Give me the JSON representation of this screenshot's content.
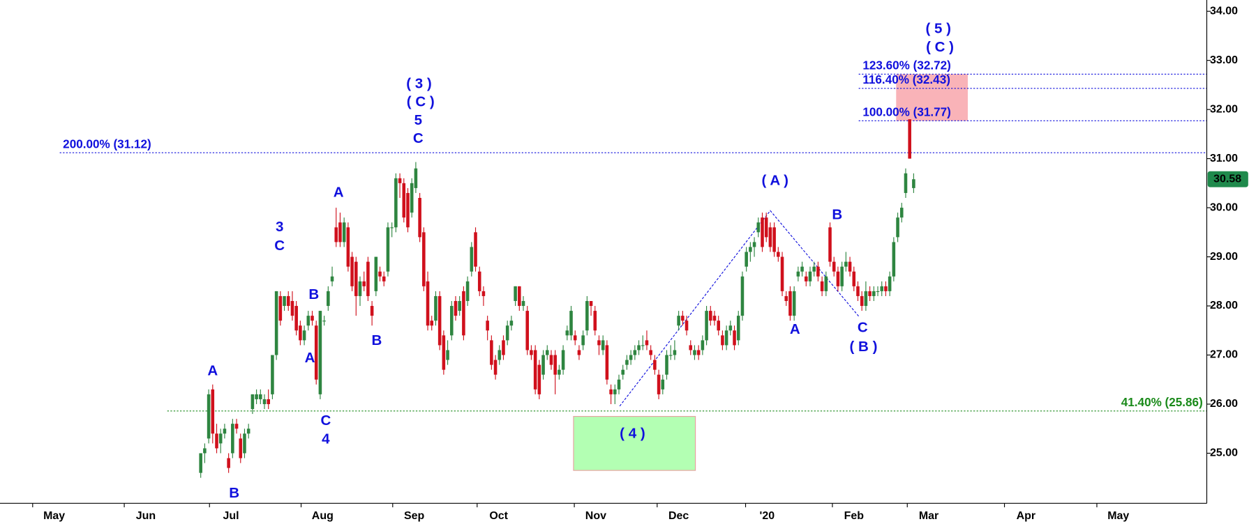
{
  "chart_data": {
    "type": "candlestick",
    "up_color": "#2e8540",
    "down_color": "#d0101c",
    "xlim": [
      -50.4,
      252.6
    ],
    "ylim": [
      23.98,
      34.23
    ],
    "xticks": [
      {
        "value": -36.8,
        "label": "May"
      },
      {
        "value": -13.8,
        "label": "Jun"
      },
      {
        "value": 7.6,
        "label": "Jul"
      },
      {
        "value": 30.6,
        "label": "Aug"
      },
      {
        "value": 53.6,
        "label": "Sep"
      },
      {
        "value": 74.8,
        "label": "Oct"
      },
      {
        "value": 99.2,
        "label": "Nov"
      },
      {
        "value": 120,
        "label": "Dec"
      },
      {
        "value": 142.2,
        "label": "'20"
      },
      {
        "value": 164,
        "label": "Feb"
      },
      {
        "value": 182.8,
        "label": "Mar"
      },
      {
        "value": 207.2,
        "label": "Apr"
      },
      {
        "value": 230.4,
        "label": "May"
      }
    ],
    "yticks": [
      {
        "value": 25,
        "label": "25.00"
      },
      {
        "value": 26,
        "label": "26.00"
      },
      {
        "value": 27,
        "label": "27.00"
      },
      {
        "value": 28,
        "label": "28.00"
      },
      {
        "value": 29,
        "label": "29.00"
      },
      {
        "value": 30,
        "label": "30.00"
      },
      {
        "value": 31,
        "label": "31.00"
      },
      {
        "value": 32,
        "label": "32.00"
      },
      {
        "value": 33,
        "label": "33.00"
      },
      {
        "value": 34,
        "label": "34.00"
      }
    ],
    "x": [
      0,
      1,
      2,
      3,
      4,
      5,
      6,
      7,
      8,
      9,
      10,
      11,
      12,
      13,
      14,
      15,
      16,
      17,
      18,
      19,
      20,
      21,
      22,
      23,
      24,
      25,
      26,
      27,
      28,
      29,
      30,
      31,
      32,
      33,
      34,
      35,
      36,
      37,
      38,
      39,
      40,
      41,
      42,
      43,
      44,
      45,
      46,
      47,
      48,
      49,
      50,
      51,
      52,
      53,
      54,
      55,
      56,
      57,
      58,
      59,
      60,
      61,
      62,
      63,
      64,
      65,
      66,
      67,
      68,
      69,
      70,
      71,
      72,
      73,
      74,
      75,
      76,
      77,
      78,
      79,
      80,
      81,
      82,
      83,
      84,
      85,
      86,
      87,
      88,
      89,
      90,
      91,
      92,
      93,
      94,
      95,
      96,
      97,
      98,
      99,
      100,
      101,
      102,
      103,
      104,
      105,
      106,
      107,
      108,
      109,
      110,
      111,
      112,
      113,
      114,
      115,
      116,
      117,
      118,
      119,
      120,
      121,
      122,
      123,
      124,
      125,
      126,
      127,
      128,
      129,
      130,
      131,
      132,
      133,
      134,
      135,
      136,
      137,
      138,
      139,
      140,
      141,
      142,
      143,
      144,
      145,
      146,
      147,
      148,
      149,
      150,
      151,
      152,
      153,
      154,
      155,
      156,
      157,
      158,
      159,
      160,
      161,
      162,
      163,
      164,
      165,
      166,
      167,
      168,
      169,
      170,
      171,
      172,
      173,
      174,
      175,
      176,
      177,
      178,
      179
    ],
    "open": [
      24.6,
      25.0,
      25.3,
      26.3,
      25.4,
      25.2,
      25.4,
      24.9,
      25.0,
      25.6,
      25.3,
      25.0,
      25.4,
      25.9,
      26.1,
      26.1,
      26.0,
      26.1,
      26.2,
      27.0,
      28.2,
      28.0,
      28.2,
      28.1,
      28.0,
      27.6,
      27.3,
      27.6,
      27.8,
      27.6,
      26.2,
      27.7,
      28.0,
      28.5,
      29.6,
      29.7,
      29.3,
      29.6,
      29.0,
      28.9,
      28.2,
      28.5,
      28.9,
      28.0,
      28.3,
      28.7,
      28.6,
      28.7,
      29.6,
      29.6,
      30.6,
      30.5,
      30.3,
      29.9,
      30.4,
      30.2,
      29.5,
      28.5,
      27.7,
      27.7,
      28.2,
      27.4,
      26.9,
      27.4,
      28.1,
      27.9,
      28.3,
      28.1,
      28.7,
      29.5,
      28.7,
      28.3,
      27.7,
      27.3,
      26.9,
      26.9,
      27.3,
      27.3,
      27.6,
      28.1,
      28.4,
      28.0,
      27.9,
      27.1,
      27.1,
      26.8,
      26.6,
      27.0,
      27.0,
      27.0,
      26.6,
      26.7,
      27.4,
      27.4,
      27.4,
      27.1,
      27.2,
      27.5,
      28.1,
      27.9,
      27.3,
      27.1,
      27.2,
      26.3,
      26.2,
      26.3,
      26.6,
      26.8,
      26.9,
      27.0,
      27.1,
      27.2,
      27.3,
      27.1,
      26.9,
      26.6,
      26.3,
      26.6,
      27.0,
      27.0,
      27.6,
      27.8,
      27.7,
      27.2,
      27.0,
      27.1,
      27.1,
      27.3,
      27.9,
      27.8,
      27.7,
      27.4,
      27.2,
      27.5,
      27.5,
      27.3,
      27.8,
      28.8,
      29.1,
      29.2,
      29.5,
      29.8,
      29.8,
      29.6,
      29.6,
      29.1,
      29.0,
      28.2,
      28.3,
      27.8,
      28.6,
      28.7,
      28.6,
      28.5,
      28.7,
      28.8,
      28.5,
      28.3,
      29.6,
      28.9,
      28.7,
      28.4,
      28.8,
      28.9,
      28.7,
      28.4,
      28.2,
      28.0,
      28.3,
      28.2,
      28.3,
      28.3,
      28.4,
      28.3,
      28.6,
      29.4,
      29.8,
      30.3,
      31.8,
      30.4
    ],
    "high": [
      25.0,
      25.2,
      26.3,
      26.4,
      25.6,
      25.5,
      25.6,
      25.0,
      25.7,
      25.7,
      25.4,
      25.5,
      25.6,
      26.2,
      26.3,
      26.3,
      26.2,
      26.3,
      27.0,
      28.3,
      28.3,
      28.2,
      28.3,
      28.3,
      28.1,
      27.7,
      27.6,
      27.9,
      27.9,
      27.7,
      27.9,
      27.8,
      28.4,
      28.8,
      30.0,
      29.9,
      29.8,
      29.7,
      29.1,
      29.0,
      28.6,
      28.7,
      29.0,
      28.1,
      29.0,
      28.8,
      28.7,
      29.7,
      29.7,
      30.7,
      30.7,
      30.6,
      30.4,
      30.6,
      30.93,
      30.3,
      29.6,
      28.7,
      27.8,
      28.3,
      28.3,
      27.5,
      27.3,
      28.1,
      28.2,
      28.2,
      28.4,
      28.6,
      29.3,
      29.6,
      28.8,
      28.4,
      27.8,
      27.4,
      27.0,
      27.2,
      27.4,
      27.7,
      27.8,
      28.4,
      28.4,
      28.2,
      28.0,
      27.2,
      27.2,
      26.9,
      27.1,
      27.2,
      27.1,
      27.1,
      26.8,
      27.2,
      27.6,
      28.0,
      27.5,
      27.2,
      27.5,
      28.2,
      28.1,
      28.0,
      27.4,
      27.4,
      27.3,
      26.4,
      26.4,
      26.6,
      26.8,
      27.0,
      27.1,
      27.2,
      27.3,
      27.4,
      27.5,
      27.2,
      27.0,
      26.7,
      26.6,
      27.1,
      27.2,
      27.3,
      27.9,
      27.9,
      27.8,
      27.3,
      27.2,
      27.2,
      27.4,
      28.0,
      28.0,
      27.9,
      27.8,
      27.5,
      27.6,
      27.7,
      27.6,
      27.9,
      28.7,
      29.2,
      29.3,
      29.4,
      29.8,
      29.9,
      29.9,
      29.7,
      29.7,
      29.2,
      29.1,
      28.3,
      28.4,
      28.4,
      28.8,
      28.9,
      28.7,
      28.8,
      28.9,
      28.9,
      28.6,
      28.7,
      29.7,
      29.0,
      28.8,
      28.9,
      29.1,
      29.0,
      28.8,
      28.5,
      28.3,
      28.5,
      28.4,
      28.4,
      28.4,
      28.5,
      28.5,
      28.7,
      29.4,
      29.9,
      30.1,
      30.8,
      31.8,
      30.7
    ],
    "low": [
      24.5,
      24.8,
      25.2,
      25.2,
      25.0,
      25.0,
      25.3,
      24.6,
      24.9,
      25.4,
      24.8,
      24.9,
      25.3,
      25.8,
      26.0,
      26.0,
      25.9,
      25.9,
      26.1,
      26.9,
      27.6,
      27.9,
      27.9,
      27.7,
      27.4,
      27.2,
      27.2,
      27.5,
      27.6,
      26.4,
      26.1,
      27.6,
      27.9,
      28.4,
      29.2,
      29.2,
      29.2,
      28.7,
      28.3,
      27.8,
      28.0,
      28.3,
      28.1,
      27.6,
      28.2,
      28.5,
      28.4,
      28.6,
      29.4,
      29.5,
      30.2,
      29.7,
      29.5,
      29.8,
      30.3,
      29.3,
      28.3,
      27.5,
      27.5,
      27.6,
      27.1,
      26.6,
      26.8,
      27.3,
      27.7,
      27.8,
      27.3,
      28.0,
      28.6,
      28.7,
      28.2,
      28.0,
      27.3,
      26.7,
      26.5,
      26.8,
      26.9,
      27.2,
      27.5,
      28.0,
      27.9,
      27.9,
      27.0,
      26.9,
      26.2,
      26.1,
      26.5,
      26.9,
      26.7,
      26.2,
      26.5,
      26.6,
      27.3,
      27.3,
      27.2,
      26.9,
      27.1,
      27.4,
      27.8,
      27.4,
      27.0,
      27.0,
      26.4,
      26.0,
      26.0,
      26.2,
      26.5,
      26.7,
      26.8,
      26.9,
      27.0,
      27.1,
      27.1,
      26.9,
      26.6,
      26.1,
      26.2,
      26.5,
      26.9,
      26.9,
      27.5,
      27.6,
      27.4,
      27.0,
      26.9,
      26.9,
      27.0,
      27.2,
      27.6,
      27.6,
      27.4,
      27.1,
      27.1,
      27.4,
      27.1,
      27.2,
      27.7,
      28.7,
      28.9,
      29.0,
      29.4,
      29.1,
      29.3,
      29.1,
      29.0,
      28.9,
      28.2,
      28.0,
      27.7,
      27.7,
      28.5,
      28.6,
      28.4,
      28.4,
      28.6,
      28.5,
      28.2,
      28.2,
      28.8,
      28.6,
      28.3,
      28.3,
      28.7,
      28.6,
      28.3,
      28.1,
      27.9,
      27.9,
      28.1,
      28.1,
      28.2,
      28.2,
      28.2,
      28.2,
      28.5,
      29.3,
      29.7,
      30.2,
      31.0,
      30.3
    ],
    "close": [
      25.0,
      25.1,
      26.2,
      25.4,
      25.1,
      25.4,
      25.5,
      24.7,
      25.6,
      25.5,
      24.9,
      25.4,
      25.5,
      26.2,
      26.2,
      26.2,
      26.1,
      26.0,
      27.0,
      28.3,
      27.7,
      28.2,
      28.0,
      27.8,
      27.5,
      27.3,
      27.5,
      27.8,
      27.7,
      26.5,
      27.9,
      27.7,
      28.3,
      28.6,
      29.3,
      29.3,
      29.7,
      28.8,
      28.4,
      28.2,
      28.5,
      28.4,
      28.2,
      27.8,
      29.0,
      28.6,
      28.5,
      29.6,
      29.6,
      30.6,
      30.5,
      29.8,
      29.6,
      30.5,
      30.8,
      29.4,
      28.4,
      27.6,
      27.6,
      28.2,
      27.2,
      26.7,
      27.1,
      28.0,
      27.8,
      28.1,
      27.4,
      28.5,
      29.2,
      28.8,
      28.3,
      28.2,
      27.5,
      26.8,
      26.6,
      27.1,
      27.0,
      27.6,
      27.7,
      28.4,
      28.0,
      28.1,
      27.1,
      27.0,
      26.3,
      26.2,
      27.0,
      27.1,
      26.8,
      26.6,
      26.7,
      27.1,
      27.5,
      27.9,
      27.3,
      27.0,
      27.4,
      28.1,
      28.0,
      27.5,
      27.2,
      27.3,
      26.5,
      26.2,
      26.3,
      26.5,
      26.7,
      26.9,
      27.0,
      27.1,
      27.2,
      27.2,
      27.2,
      27.0,
      26.7,
      26.2,
      26.5,
      27.0,
      27.0,
      27.1,
      27.8,
      27.7,
      27.5,
      27.1,
      27.1,
      27.0,
      27.3,
      27.9,
      27.7,
      27.7,
      27.5,
      27.2,
      27.5,
      27.6,
      27.2,
      27.8,
      28.6,
      29.1,
      29.2,
      29.3,
      29.7,
      29.2,
      29.4,
      29.2,
      29.1,
      29.0,
      28.3,
      28.1,
      27.8,
      28.3,
      28.7,
      28.8,
      28.5,
      28.7,
      28.8,
      28.6,
      28.3,
      28.6,
      28.9,
      28.7,
      28.4,
      28.8,
      28.9,
      28.7,
      28.4,
      28.2,
      28.0,
      28.3,
      28.2,
      28.3,
      28.3,
      28.4,
      28.3,
      28.6,
      29.3,
      29.8,
      30.0,
      30.7,
      31.0,
      30.58
    ],
    "levels": [
      {
        "value": 31.12,
        "label": "200.00% (31.12)",
        "color": "#1010dd",
        "from": -35.4
      },
      {
        "value": 32.72,
        "label": "123.60% (32.72)",
        "color": "#1010dd",
        "from": 165.2
      },
      {
        "value": 32.43,
        "label": "116.40% (32.43)",
        "color": "#1010dd",
        "from": 165.2
      },
      {
        "value": 31.77,
        "label": "100.00% (31.77)",
        "color": "#1010dd",
        "from": 165.2
      },
      {
        "value": 25.86,
        "label": "41.40% (25.86)",
        "color": "#1a8a1a",
        "from": -8.4
      }
    ],
    "zones": [
      {
        "x": [
          174.6,
          192.6
        ],
        "y": [
          31.77,
          32.72
        ],
        "color": "#f9b3b8"
      },
      {
        "x": [
          93.6,
          124.2
        ],
        "y": [
          24.65,
          25.75
        ],
        "color": "#b3ffb3"
      }
    ],
    "channel": {
      "x": [
        105.2,
        143,
        165.2
      ],
      "y": [
        25.96,
        29.94,
        27.79
      ],
      "color": "#1010dd"
    },
    "annotations": [
      "A",
      "B",
      "3",
      "C",
      "B",
      "A",
      "C",
      "4",
      "A",
      "B",
      "( 3 )",
      "( C )",
      "5",
      "C",
      "( 4 )",
      "( A )",
      "A",
      "B",
      "C",
      "( B )",
      "( 5 )",
      "( C )"
    ]
  }
}
